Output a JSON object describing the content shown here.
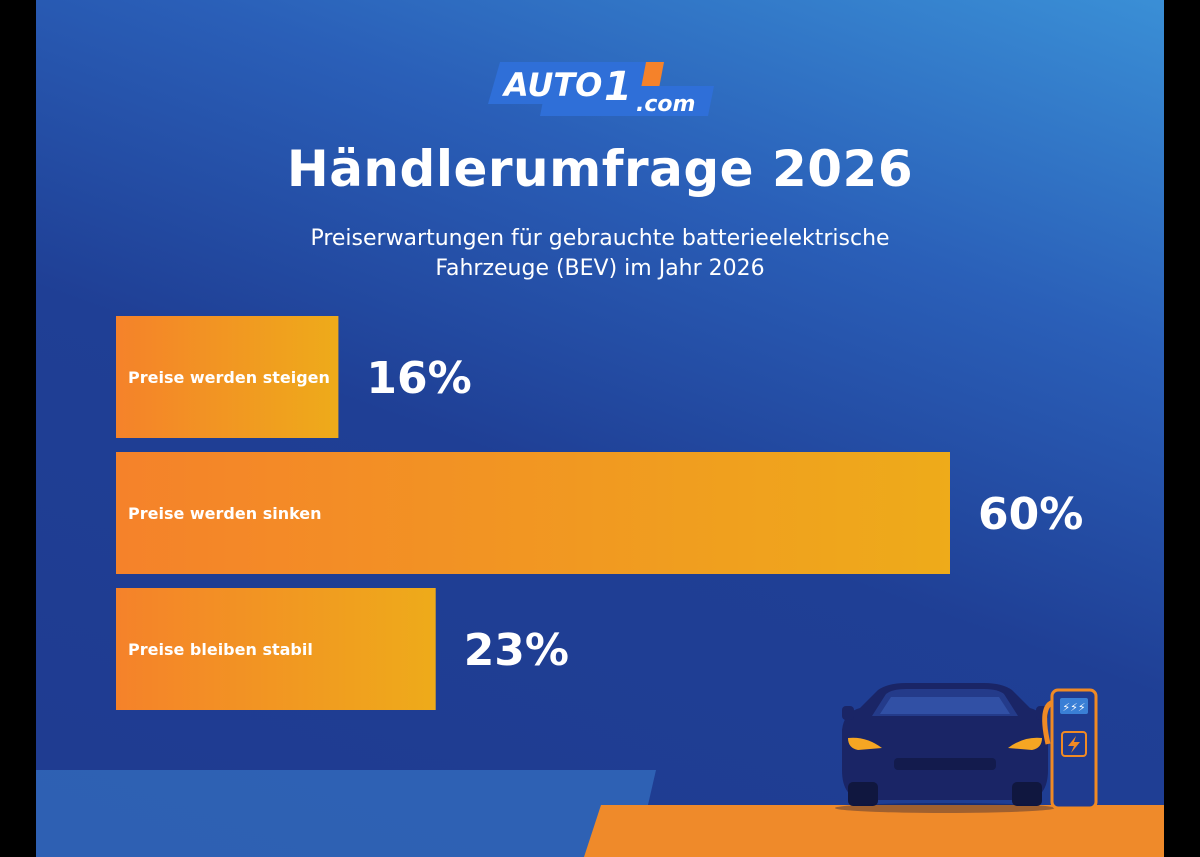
{
  "logo": {
    "text_main": "AUTO",
    "text_num": "1",
    "text_suffix": ".com"
  },
  "title": "Händlerumfrage 2026",
  "subtitle_lines": [
    "Preiserwartungen für gebrauchte batterieelektrische",
    "Fahrzeuge (BEV) im Jahr 2026"
  ],
  "colors": {
    "bar_start": "#f5822a",
    "bar_end": "#eeab1a",
    "background": "#1f3f95",
    "accent_orange": "#f08a24"
  },
  "chart_data": {
    "type": "bar",
    "orientation": "horizontal",
    "categories": [
      "Preise werden steigen",
      "Preise werden sinken",
      "Preise bleiben stabil"
    ],
    "values": [
      16,
      60,
      23
    ],
    "value_labels": [
      "16%",
      "60%",
      "23%"
    ],
    "unit": "%",
    "title": "Händlerumfrage 2026",
    "subtitle": "Preiserwartungen für gebrauchte batterieelektrische Fahrzeuge (BEV) im Jahr 2026",
    "xlim": [
      0,
      60
    ],
    "grid": false
  }
}
